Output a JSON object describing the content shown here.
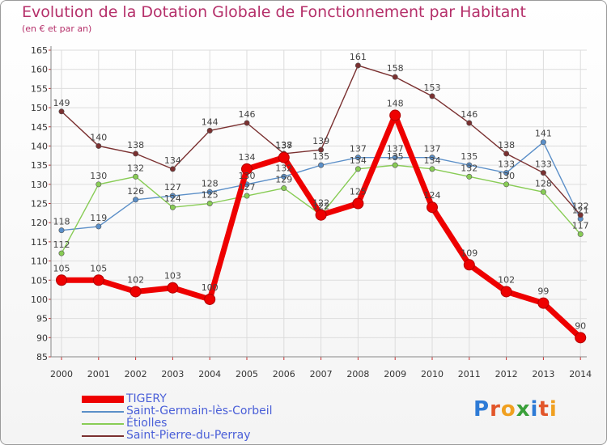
{
  "title": "Evolution de la Dotation Globale de Fonctionnement par Habitant",
  "subtitle": "(en € et par an)",
  "logo": {
    "text": "Proxiti",
    "colors": [
      "#2e7bd6",
      "#e2562a",
      "#f0a020",
      "#3aa03a",
      "#2e7bd6",
      "#e2562a",
      "#f0a020"
    ]
  },
  "chart_data": {
    "type": "line",
    "title": "Evolution de la Dotation Globale de Fonctionnement par Habitant",
    "subtitle": "(en € et par an)",
    "xlabel": "",
    "ylabel": "",
    "x": [
      2000,
      2001,
      2002,
      2003,
      2004,
      2005,
      2006,
      2007,
      2008,
      2009,
      2010,
      2011,
      2012,
      2013,
      2014
    ],
    "ylim": [
      85,
      165
    ],
    "yticks": [
      85,
      90,
      95,
      100,
      105,
      110,
      115,
      120,
      125,
      130,
      135,
      140,
      145,
      150,
      155,
      160,
      165
    ],
    "grid": true,
    "legend_position": "bottom-left",
    "series": [
      {
        "name": "TIGERY",
        "color": "#ee0000",
        "emphasis": true,
        "values": [
          105,
          105,
          102,
          103,
          100,
          134,
          137,
          122,
          125,
          148,
          124,
          109,
          102,
          99,
          90
        ]
      },
      {
        "name": "Saint-Germain-lès-Corbeil",
        "color": "#5b8fc8",
        "emphasis": false,
        "values": [
          118,
          119,
          126,
          127,
          128,
          130,
          132,
          135,
          137,
          137,
          137,
          135,
          133,
          141,
          121
        ]
      },
      {
        "name": "Étiolles",
        "color": "#88cc55",
        "emphasis": false,
        "values": [
          112,
          130,
          132,
          124,
          125,
          127,
          129,
          122,
          134,
          135,
          134,
          132,
          130,
          128,
          117
        ]
      },
      {
        "name": "Saint-Pierre-du-Perray",
        "color": "#7a3030",
        "emphasis": false,
        "values": [
          149,
          140,
          138,
          134,
          144,
          146,
          138,
          139,
          161,
          158,
          153,
          146,
          138,
          133,
          122
        ]
      }
    ]
  }
}
